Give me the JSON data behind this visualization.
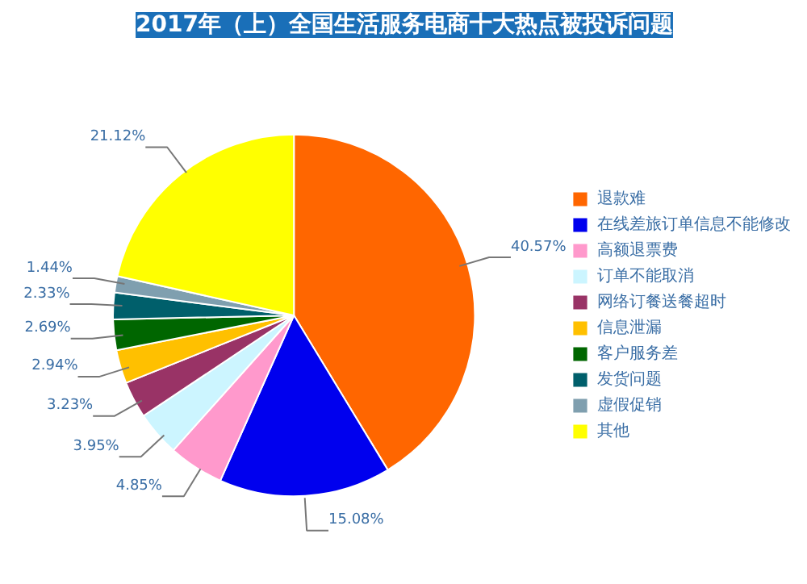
{
  "chart_data": {
    "type": "pie",
    "title": "2017年（上）全国生活服务电商十大热点被投诉问题",
    "categories": [
      "退款难",
      "在线差旅订单信息不能修改",
      "高额退票费",
      "订单不能取消",
      "网络订餐送餐超时",
      "信息泄漏",
      "客户服务差",
      "发货问题",
      "虚假促销",
      "其他"
    ],
    "values": [
      40.57,
      15.08,
      4.85,
      3.95,
      3.23,
      2.94,
      2.69,
      2.33,
      1.44,
      21.12
    ],
    "value_labels": [
      "40.57%",
      "15.08%",
      "4.85%",
      "3.95%",
      "3.23%",
      "2.94%",
      "2.69%",
      "2.33%",
      "1.44%",
      "21.12%"
    ],
    "colors": [
      "#ff6600",
      "#0000ee",
      "#ff99cc",
      "#ccf5ff",
      "#993366",
      "#ffc000",
      "#006600",
      "#005f6b",
      "#7f9faf",
      "#ffff00"
    ],
    "legend": "right"
  }
}
